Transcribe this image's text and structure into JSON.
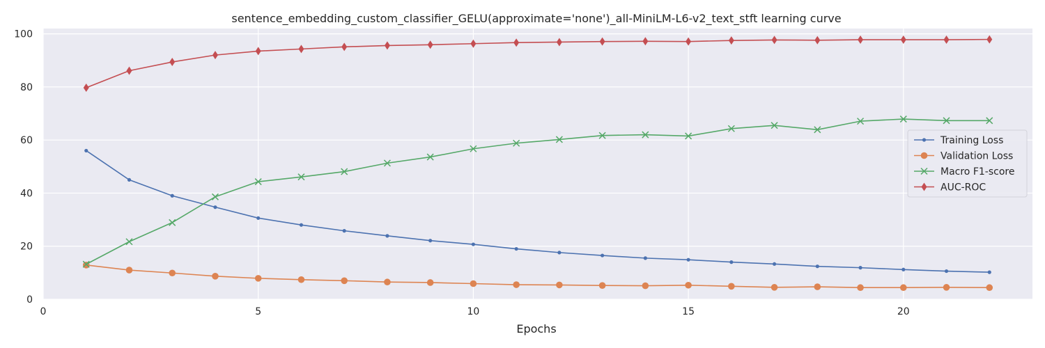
{
  "chart_data": {
    "type": "line",
    "title": "sentence_embedding_custom_classifier_GELU(approximate='none')_all-MiniLM-L6-v2_text_stft learning curve",
    "xlabel": "Epochs",
    "ylabel": "",
    "xlim": [
      0,
      23
    ],
    "ylim": [
      0,
      102
    ],
    "xticks": [
      0,
      5,
      10,
      15,
      20
    ],
    "yticks": [
      0,
      20,
      40,
      60,
      80,
      100
    ],
    "grid": true,
    "legend_position": "center-right",
    "background_color": "#eaeaf2",
    "x": [
      1,
      2,
      3,
      4,
      5,
      6,
      7,
      8,
      9,
      10,
      11,
      12,
      13,
      14,
      15,
      16,
      17,
      18,
      19,
      20,
      21,
      22
    ],
    "series": [
      {
        "name": "Training Loss",
        "color": "#4c72b0",
        "marker": "point",
        "values": [
          56.0,
          45.0,
          39.0,
          34.7,
          30.6,
          28.0,
          25.8,
          23.9,
          22.1,
          20.7,
          19.0,
          17.6,
          16.5,
          15.5,
          14.9,
          14.0,
          13.3,
          12.4,
          11.9,
          11.2,
          10.6,
          10.2
        ]
      },
      {
        "name": "Validation Loss",
        "color": "#dd8452",
        "marker": "circle",
        "values": [
          12.9,
          11.0,
          9.9,
          8.7,
          7.9,
          7.4,
          7.0,
          6.5,
          6.3,
          5.9,
          5.5,
          5.4,
          5.2,
          5.1,
          5.3,
          4.9,
          4.5,
          4.7,
          4.4,
          4.4,
          4.5,
          4.4
        ]
      },
      {
        "name": "Macro F1-score",
        "color": "#55a868",
        "marker": "x",
        "values": [
          13.2,
          21.7,
          28.9,
          38.6,
          44.3,
          46.1,
          48.1,
          51.3,
          53.6,
          56.7,
          58.8,
          60.2,
          61.7,
          62.0,
          61.5,
          64.3,
          65.5,
          63.9,
          67.1,
          67.9,
          67.3,
          67.3
        ]
      },
      {
        "name": "AUC-ROC",
        "color": "#c44e52",
        "marker": "diamond",
        "values": [
          79.7,
          86.1,
          89.4,
          92.0,
          93.5,
          94.3,
          95.1,
          95.6,
          95.9,
          96.3,
          96.7,
          96.9,
          97.1,
          97.2,
          97.1,
          97.5,
          97.7,
          97.6,
          97.8,
          97.8,
          97.8,
          97.9
        ]
      }
    ]
  }
}
